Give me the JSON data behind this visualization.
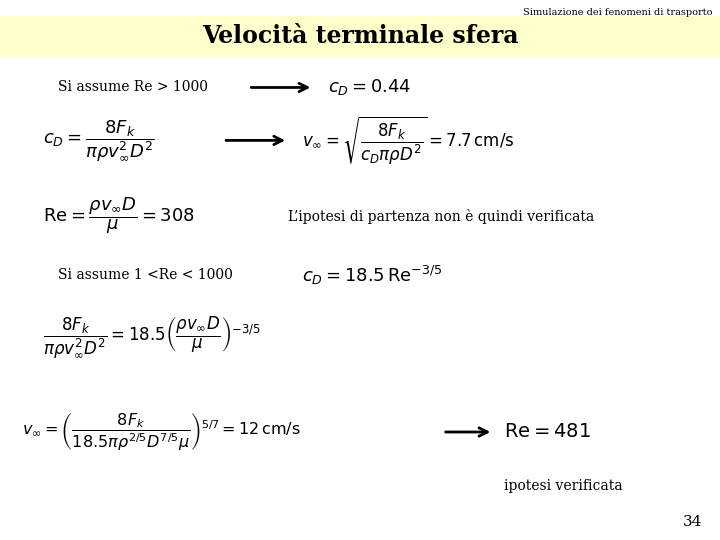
{
  "header_text": "Simulazione dei fenomeni di trasporto",
  "title": "Velocità terminale sfera",
  "title_bg": "#FFFFCC",
  "bg_color": "#FFFFFF",
  "page_number": "34",
  "formulas": {
    "assume1": "Si assume Re > 1000",
    "cD_044": "$c_D = 0.44$",
    "formula_cD": "$c_D = \\dfrac{8F_k}{\\pi\\rho v_{\\infty}^2 D^2}$",
    "formula_vinf": "$v_{\\infty} = \\sqrt{\\dfrac{8F_k}{c_D \\pi\\rho D^2}} = 7.7\\,\\mathrm{cm/s}$",
    "formula_Re": "$\\mathrm{Re} = \\dfrac{\\rho v_{\\infty} D}{\\mu} = 308$",
    "hypothesis_text": "L’ipotesi di partenza non è quindi verificata",
    "assume2": "Si assume 1 <Re < 1000",
    "formula_cD2": "$c_D = 18.5\\,\\mathrm{Re}^{-3/5}$",
    "formula_balance": "$\\dfrac{8F_k}{\\pi\\rho v_{\\infty}^2 D^2} = 18.5\\left(\\dfrac{\\rho v_{\\infty} D}{\\mu}\\right)^{-3/5}$",
    "formula_vinf2": "$v_{\\infty} = \\left(\\dfrac{8F_k}{18.5\\pi\\rho^{2/5} D^{7/5}\\mu}\\right)^{5/7} = 12\\,\\mathrm{cm/s}$",
    "formula_Re2": "$\\mathrm{Re} = 481$",
    "verified": "ipotesi verificata"
  }
}
